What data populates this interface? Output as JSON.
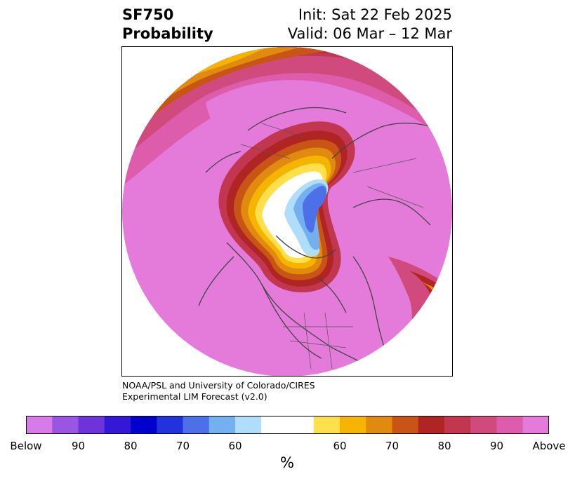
{
  "header": {
    "title_line1": "SF750",
    "title_line2": "Probability",
    "init": "Init: Sat 22 Feb 2025",
    "valid": "Valid: 06 Mar – 12 Mar"
  },
  "credit": {
    "line1": "NOAA/PSL and University of Colorado/CIRES",
    "line2": "Experimental LIM Forecast (v2.0)"
  },
  "colorbar": {
    "unit": "%",
    "colors": [
      "#d77be8",
      "#9b55e3",
      "#6c34d9",
      "#3318d6",
      "#0000cc",
      "#2233dd",
      "#4d6fe8",
      "#72b0f0",
      "#b0defa",
      "#ffffff",
      "#ffffff",
      "#ffe04a",
      "#f4b400",
      "#e08a10",
      "#c85516",
      "#b02424",
      "#c23650",
      "#d04a7e",
      "#dd5cab",
      "#e47bdb"
    ],
    "ticks": [
      "Below",
      "90",
      "80",
      "70",
      "60",
      "60",
      "70",
      "80",
      "90",
      "Above"
    ]
  },
  "map": {
    "projection": "north-polar-stereographic",
    "region": "Northern Hemisphere"
  }
}
